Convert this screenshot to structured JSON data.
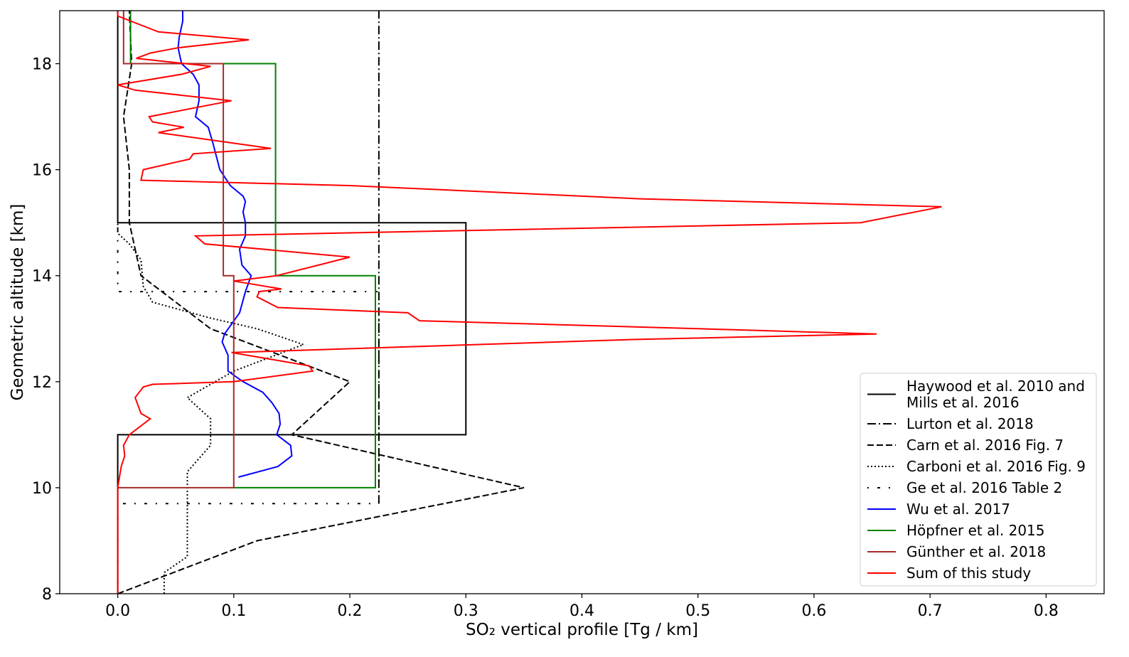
{
  "chart_data": {
    "type": "line",
    "xlabel": "SO₂ vertical profile [Tg / km]",
    "ylabel": "Geometric altitude [km]",
    "xlim": [
      -0.05,
      0.85
    ],
    "ylim": [
      8,
      19
    ],
    "xticks": [
      0.0,
      0.1,
      0.2,
      0.3,
      0.4,
      0.5,
      0.6,
      0.7,
      0.8
    ],
    "xtick_labels": [
      "0.0",
      "0.1",
      "0.2",
      "0.3",
      "0.4",
      "0.5",
      "0.6",
      "0.7",
      "0.8"
    ],
    "yticks": [
      8,
      10,
      12,
      14,
      16,
      18
    ],
    "ytick_labels": [
      "8",
      "10",
      "12",
      "14",
      "16",
      "18"
    ],
    "grid": false,
    "legend_position": "bottom-right",
    "series": [
      {
        "name": "Haywood et al. 2010 and Mills et al. 2016",
        "legend_lines": [
          "Haywood et al. 2010 and",
          "Mills et al. 2016"
        ],
        "color": "#000000",
        "dash": "solid",
        "points": [
          [
            0,
            8
          ],
          [
            0,
            11
          ],
          [
            0.3,
            11
          ],
          [
            0.3,
            15
          ],
          [
            0,
            15
          ],
          [
            0,
            19
          ]
        ]
      },
      {
        "name": "Lurton et al. 2018",
        "color": "#000000",
        "dash": "dashdot",
        "points": [
          [
            0.225,
            9.7
          ],
          [
            0.225,
            19
          ]
        ]
      },
      {
        "name": "Carn et al. 2016 Fig. 7",
        "color": "#000000",
        "dash": "dashed",
        "points": [
          [
            0,
            8
          ],
          [
            0.12,
            9
          ],
          [
            0.35,
            10
          ],
          [
            0.15,
            11
          ],
          [
            0.2,
            12
          ],
          [
            0.08,
            13
          ],
          [
            0.02,
            14
          ],
          [
            0.01,
            15
          ],
          [
            0.01,
            16
          ],
          [
            0.005,
            17
          ],
          [
            0.012,
            18
          ],
          [
            0.01,
            19
          ]
        ]
      },
      {
        "name": "Carboni et al. 2016 Fig. 9",
        "color": "#000000",
        "dash": "dotted",
        "points": [
          [
            0.04,
            8
          ],
          [
            0.04,
            8.4
          ],
          [
            0.06,
            8.7
          ],
          [
            0.06,
            10.3
          ],
          [
            0.08,
            10.8
          ],
          [
            0.08,
            11.3
          ],
          [
            0.06,
            11.7
          ],
          [
            0.1,
            12.2
          ],
          [
            0.16,
            12.7
          ],
          [
            0.12,
            13
          ],
          [
            0.08,
            13.2
          ],
          [
            0.03,
            13.5
          ],
          [
            0.022,
            13.8
          ],
          [
            0.02,
            14.3
          ],
          [
            0.01,
            14.6
          ],
          [
            0,
            14.8
          ],
          [
            0,
            15
          ]
        ]
      },
      {
        "name": "Ge et al. 2016 Table 2",
        "color": "#000000",
        "dash": "sparsedot",
        "points": [
          [
            0,
            8
          ],
          [
            0,
            9.7
          ],
          [
            0.225,
            9.7
          ],
          [
            0.225,
            13.7
          ],
          [
            0,
            13.7
          ],
          [
            0,
            15
          ]
        ]
      },
      {
        "name": "Wu et al. 2017",
        "color": "#0000ff",
        "dash": "solid",
        "points": [
          [
            0.104,
            10.2
          ],
          [
            0.138,
            10.4
          ],
          [
            0.15,
            10.6
          ],
          [
            0.149,
            10.8
          ],
          [
            0.137,
            11
          ],
          [
            0.14,
            11.2
          ],
          [
            0.139,
            11.4
          ],
          [
            0.133,
            11.6
          ],
          [
            0.125,
            11.8
          ],
          [
            0.108,
            12
          ],
          [
            0.095,
            12.2
          ],
          [
            0.095,
            12.5
          ],
          [
            0.09,
            12.75
          ],
          [
            0.092,
            12.9
          ],
          [
            0.105,
            13.3
          ],
          [
            0.11,
            13.7
          ],
          [
            0.115,
            14.0
          ],
          [
            0.107,
            14.2
          ],
          [
            0.105,
            14.5
          ],
          [
            0.11,
            14.75
          ],
          [
            0.11,
            15.0
          ],
          [
            0.108,
            15.2
          ],
          [
            0.11,
            15.4
          ],
          [
            0.108,
            15.5
          ],
          [
            0.097,
            15.7
          ],
          [
            0.088,
            16
          ],
          [
            0.082,
            16.5
          ],
          [
            0.078,
            16.8
          ],
          [
            0.067,
            17
          ],
          [
            0.07,
            17.3
          ],
          [
            0.07,
            17.6
          ],
          [
            0.065,
            17.8
          ],
          [
            0.055,
            18
          ],
          [
            0.052,
            18.3
          ],
          [
            0.053,
            18.5
          ],
          [
            0.056,
            18.8
          ],
          [
            0.056,
            19
          ]
        ]
      },
      {
        "name": "Höpfner et al. 2015",
        "color": "#008000",
        "dash": "solid",
        "points": [
          [
            0.1,
            10
          ],
          [
            0.222,
            10
          ],
          [
            0.222,
            14
          ],
          [
            0.136,
            14
          ],
          [
            0.136,
            18
          ],
          [
            0.011,
            18
          ],
          [
            0.011,
            19
          ]
        ]
      },
      {
        "name": "Günther et al. 2018",
        "color": "#a52a2a",
        "dash": "solid",
        "points": [
          [
            0,
            8
          ],
          [
            0,
            10
          ],
          [
            0.1,
            10
          ],
          [
            0.1,
            14
          ],
          [
            0.091,
            14
          ],
          [
            0.091,
            18
          ],
          [
            0.005,
            18
          ],
          [
            0.005,
            19
          ]
        ]
      },
      {
        "name": "Sum of this study",
        "color": "#ff0000",
        "dash": "solid",
        "points": [
          [
            0,
            8
          ],
          [
            0,
            10
          ],
          [
            0.003,
            10.4
          ],
          [
            0.006,
            10.6
          ],
          [
            0.005,
            10.8
          ],
          [
            0.01,
            11
          ],
          [
            0.028,
            11.3
          ],
          [
            0.02,
            11.4
          ],
          [
            0.015,
            11.7
          ],
          [
            0.022,
            11.9
          ],
          [
            0.03,
            11.95
          ],
          [
            0.1,
            12.0
          ],
          [
            0.168,
            12.2
          ],
          [
            0.165,
            12.3
          ],
          [
            0.098,
            12.55
          ],
          [
            0.45,
            12.8
          ],
          [
            0.654,
            12.9
          ],
          [
            0.5,
            13
          ],
          [
            0.26,
            13.15
          ],
          [
            0.25,
            13.3
          ],
          [
            0.138,
            13.4
          ],
          [
            0.12,
            13.6
          ],
          [
            0.122,
            13.7
          ],
          [
            0.141,
            13.75
          ],
          [
            0.1,
            13.9
          ],
          [
            0.137,
            14.0
          ],
          [
            0.2,
            14.35
          ],
          [
            0.075,
            14.6
          ],
          [
            0.067,
            14.75
          ],
          [
            0.64,
            15.0
          ],
          [
            0.71,
            15.3
          ],
          [
            0.45,
            15.45
          ],
          [
            0.2,
            15.7
          ],
          [
            0.02,
            15.8
          ],
          [
            0.022,
            16
          ],
          [
            0.062,
            16.2
          ],
          [
            0.065,
            16.3
          ],
          [
            0.132,
            16.4
          ],
          [
            0.035,
            16.7
          ],
          [
            0.057,
            16.8
          ],
          [
            0.03,
            16.9
          ],
          [
            0.027,
            17.0
          ],
          [
            0.098,
            17.3
          ],
          [
            0.015,
            17.5
          ],
          [
            0,
            17.6
          ],
          [
            0.055,
            17.8
          ],
          [
            0.08,
            17.95
          ],
          [
            0.016,
            18.1
          ],
          [
            0.028,
            18.2
          ],
          [
            0.052,
            18.3
          ],
          [
            0.113,
            18.45
          ],
          [
            0.035,
            18.6
          ],
          [
            0,
            18.9
          ],
          [
            0,
            19
          ]
        ]
      }
    ]
  }
}
